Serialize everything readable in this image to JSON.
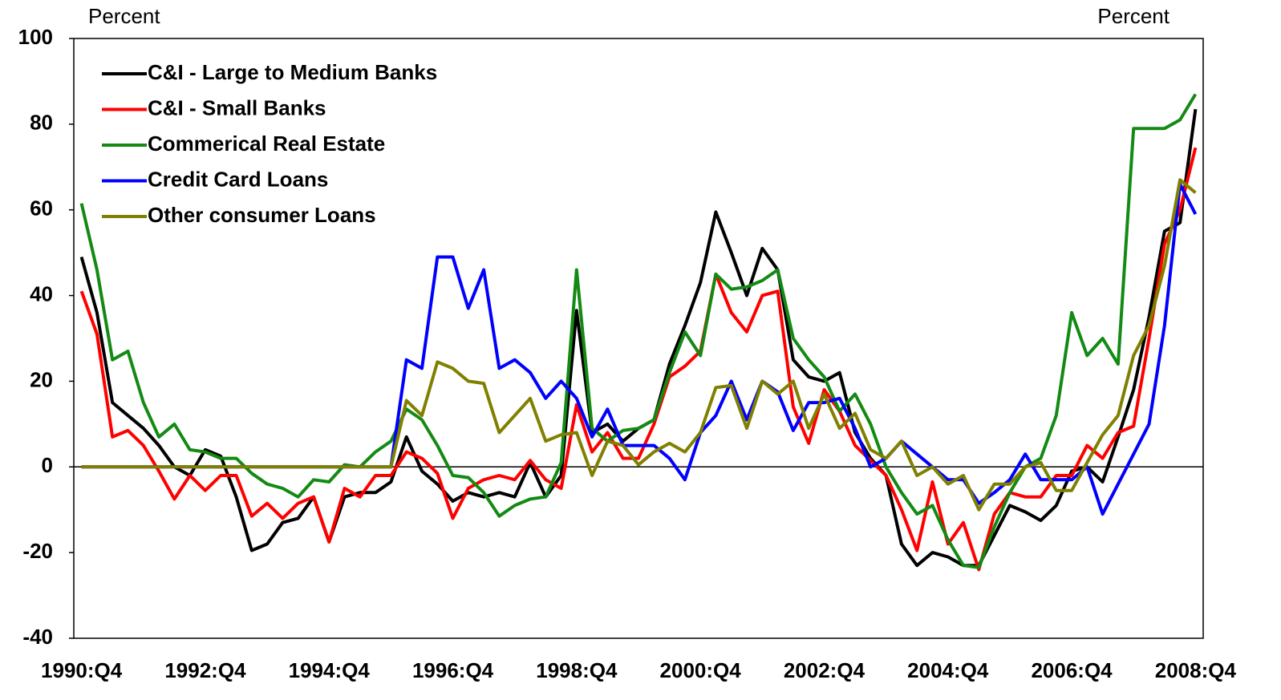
{
  "chart_data": {
    "type": "line",
    "ylabel_left": "Percent",
    "ylabel_right": "Percent",
    "categories": [
      "1990:Q4",
      null,
      null,
      null,
      null,
      null,
      null,
      null,
      "1992:Q4",
      null,
      null,
      null,
      null,
      null,
      null,
      null,
      "1994:Q4",
      null,
      null,
      null,
      null,
      null,
      null,
      null,
      "1996:Q4",
      null,
      null,
      null,
      null,
      null,
      null,
      null,
      "1998:Q4",
      null,
      null,
      null,
      null,
      null,
      null,
      null,
      "2000:Q4",
      null,
      null,
      null,
      null,
      null,
      null,
      null,
      "2002:Q4",
      null,
      null,
      null,
      null,
      null,
      null,
      null,
      "2004:Q4",
      null,
      null,
      null,
      null,
      null,
      null,
      null,
      "2006:Q4",
      null,
      null,
      null,
      null,
      null,
      null,
      null,
      "2008:Q4"
    ],
    "ylim": [
      -40,
      100
    ],
    "yticks": [
      -40,
      -20,
      0,
      20,
      40,
      60,
      80,
      100
    ],
    "grid": false,
    "legend": "upper left",
    "series": [
      {
        "name": "C&I - Large to Medium Banks",
        "color": "#000000",
        "values": [
          49,
          36,
          15,
          12,
          9,
          5,
          0,
          -2,
          4,
          2.5,
          -7,
          -19.5,
          -18,
          -13,
          -12,
          -7,
          -17.5,
          -7,
          -6,
          -6,
          -3.5,
          7,
          -1,
          -4,
          -8,
          -6,
          -7,
          -6,
          -7,
          1,
          -7,
          -2,
          36.5,
          8,
          10,
          6,
          9,
          11,
          24,
          33,
          43,
          59.5,
          50,
          40,
          51,
          46,
          25,
          21,
          20,
          22,
          8,
          2,
          -2,
          -18,
          -23,
          -20,
          -21,
          -23,
          -23,
          -16,
          -9,
          -10.5,
          -12.5,
          -9,
          -1,
          0,
          -3.5,
          7,
          18,
          35,
          55,
          57,
          83.5
        ]
      },
      {
        "name": "C&I - Small Banks",
        "color": "#ff0000",
        "values": [
          41,
          31,
          7,
          8.5,
          5,
          -1,
          -7.5,
          -2,
          -5.5,
          -2,
          -2,
          -11.5,
          -8.5,
          -12,
          -8.5,
          -7,
          -17.5,
          -5,
          -7,
          -2,
          -2,
          3.5,
          2,
          -1.5,
          -12,
          -5,
          -3,
          -2,
          -3,
          1.5,
          -3,
          -5,
          14.5,
          3.5,
          8,
          2,
          2,
          10,
          21,
          23.5,
          27,
          45,
          36,
          31.5,
          40,
          41,
          14,
          5.5,
          18,
          13,
          5,
          1.5,
          -2,
          -10,
          -19.5,
          -3.5,
          -18,
          -13,
          -24,
          -11,
          -6,
          -7,
          -7,
          -2,
          -2,
          5,
          2,
          8,
          9.5,
          30,
          52,
          60,
          74.5
        ]
      },
      {
        "name": "Commerical Real Estate",
        "color": "#138a13",
        "values": [
          61.5,
          46,
          25,
          27,
          15,
          7,
          10,
          4,
          3.5,
          2,
          2,
          -1.5,
          -4,
          -5,
          -7,
          -3,
          -3.5,
          0.5,
          0,
          3.5,
          6,
          13.5,
          11,
          5,
          -2,
          -2.5,
          -6,
          -11.5,
          -9,
          -7.5,
          -7,
          1,
          46,
          9,
          6,
          8.5,
          9,
          11,
          22,
          31.5,
          26,
          45,
          41.5,
          42,
          43.5,
          46,
          30,
          25,
          21,
          13,
          17,
          10,
          0,
          -6,
          -11,
          -9,
          -17,
          -23,
          -23.5,
          -14,
          -6,
          0,
          2,
          12,
          36,
          26,
          30,
          24,
          79,
          79,
          79,
          81,
          87
        ]
      },
      {
        "name": "Credit Card Loans",
        "color": "#0000ff",
        "values": [
          0,
          0,
          0,
          0,
          0,
          0,
          0,
          0,
          0,
          0,
          0,
          0,
          0,
          0,
          0,
          0,
          0,
          0,
          0,
          0,
          0,
          25,
          23,
          49,
          49,
          37,
          46,
          23,
          25,
          22,
          16,
          20,
          16,
          7,
          13.5,
          5,
          5,
          5,
          2,
          -3,
          8,
          12,
          20,
          11,
          20,
          17.5,
          8.5,
          15,
          15,
          16,
          9,
          0,
          2,
          6,
          3,
          0,
          -3,
          -3,
          -8.5,
          -6,
          -3,
          3,
          -3,
          -3,
          -3,
          0,
          -11,
          -4,
          3,
          10,
          33,
          66,
          59
        ]
      },
      {
        "name": "Other consumer Loans",
        "color": "#808000",
        "values": [
          0,
          0,
          0,
          0,
          0,
          0,
          0,
          0,
          0,
          0,
          0,
          0,
          0,
          0,
          0,
          0,
          0,
          0,
          0,
          0,
          0,
          15.5,
          12,
          24.5,
          23,
          20,
          19.5,
          8,
          12,
          16,
          6,
          7.5,
          8,
          -2,
          6,
          5,
          0.5,
          3.5,
          5.5,
          3.5,
          8,
          18.5,
          19,
          9,
          20,
          17,
          20,
          9,
          17,
          9,
          12.5,
          4,
          2,
          6,
          -2,
          0,
          -4,
          -2,
          -10,
          -4,
          -4,
          0,
          1,
          -5.5,
          -5.5,
          1,
          7.5,
          12,
          26,
          33,
          47,
          67,
          64
        ]
      }
    ]
  }
}
